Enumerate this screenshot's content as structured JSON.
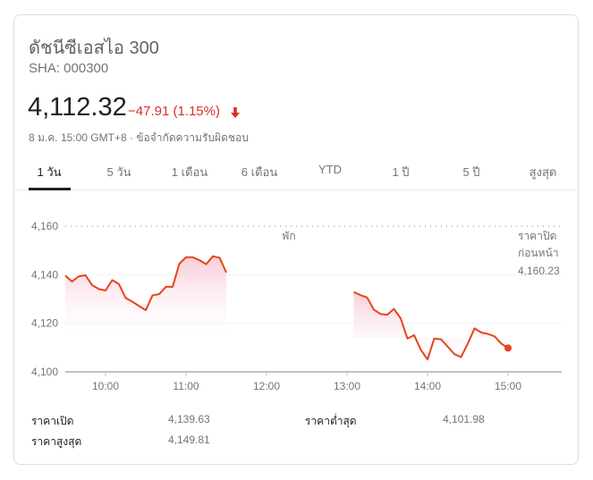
{
  "header": {
    "title": "ดัชนีซีเอสไอ 300",
    "ticker": "SHA: 000300",
    "price": "4,112.32",
    "change": "−47.91 (1.15%)",
    "change_direction": "down",
    "arrow_icon": "arrow-down-icon",
    "meta": "8 ม.ค. 15:00 GMT+8 · ข้อจำกัดความรับผิดชอบ"
  },
  "tabs": [
    {
      "label": "1 วัน",
      "active": true
    },
    {
      "label": "5 วัน"
    },
    {
      "label": "1 เดือน"
    },
    {
      "label": "6 เดือน"
    },
    {
      "label": "YTD"
    },
    {
      "label": "1 ปี"
    },
    {
      "label": "5 ปี"
    },
    {
      "label": "สูงสุด"
    }
  ],
  "colors": {
    "line": "#e8431c",
    "negative": "#d93025",
    "fill": "#fbd3dc"
  },
  "chart_data": {
    "type": "line",
    "break_label": "พัก",
    "prev_close_label_1": "ราคาปิด",
    "prev_close_label_2": "ก่อนหน้า",
    "prev_close_value": "4,160.23",
    "prev_close": 4160.23,
    "y_ticks": [
      "4,160",
      "4,140",
      "4,120",
      "4,100"
    ],
    "y_tick_values": [
      4160,
      4140,
      4120,
      4100
    ],
    "x_ticks": [
      "10:00",
      "11:00",
      "12:00",
      "13:00",
      "14:00",
      "15:00"
    ],
    "ylim": [
      4100,
      4160
    ],
    "xlim": [
      "9:30",
      "15:40"
    ],
    "series": [
      {
        "segment": "morning",
        "x": [
          "9:30",
          "9:35",
          "9:40",
          "9:45",
          "9:50",
          "9:55",
          "10:00",
          "10:05",
          "10:10",
          "10:15",
          "10:20",
          "10:25",
          "10:30",
          "10:35",
          "10:40",
          "10:45",
          "10:50",
          "10:55",
          "11:00",
          "11:05",
          "11:10",
          "11:15",
          "11:20",
          "11:25",
          "11:30"
        ],
        "values": [
          4139.6,
          4137.2,
          4139.3,
          4139.8,
          4135.7,
          4134.1,
          4133.5,
          4137.8,
          4136.1,
          4130.4,
          4128.9,
          4127.1,
          4125.4,
          4131.5,
          4132.0,
          4135.0,
          4135.0,
          4144.5,
          4147.2,
          4147.2,
          4146.0,
          4144.3,
          4147.6,
          4147.0,
          4140.9
        ]
      },
      {
        "segment": "afternoon",
        "x": [
          "13:05",
          "13:10",
          "13:15",
          "13:20",
          "13:25",
          "13:30",
          "13:35",
          "13:40",
          "13:45",
          "13:50",
          "13:55",
          "14:00",
          "14:05",
          "14:10",
          "14:15",
          "14:20",
          "14:25",
          "14:30",
          "14:35",
          "14:40",
          "14:45",
          "14:50",
          "14:55",
          "15:00"
        ],
        "values": [
          4132.9,
          4131.6,
          4130.6,
          4125.6,
          4123.8,
          4123.5,
          4125.9,
          4122.0,
          4113.7,
          4115.1,
          4109.1,
          4105.1,
          4113.7,
          4113.4,
          4110.4,
          4107.3,
          4106.1,
          4111.6,
          4117.9,
          4116.2,
          4115.6,
          4114.6,
          4111.6,
          4109.8
        ]
      }
    ]
  },
  "stats": {
    "open_label": "ราคาเปิด",
    "open": "4,139.63",
    "high_label": "ราคาสูงสุด",
    "high": "4,149.81",
    "low_label": "ราคาต่ำสุด",
    "low": "4,101.98"
  }
}
